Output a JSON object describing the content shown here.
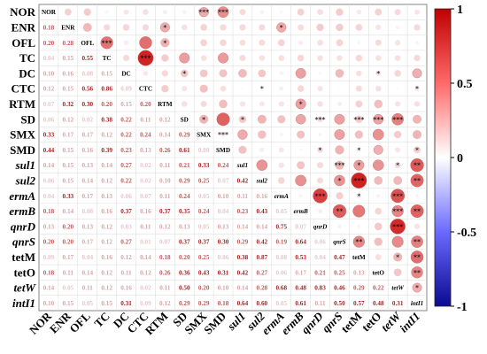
{
  "chart_data": {
    "type": "heatmap",
    "variables": [
      "NOR",
      "ENR",
      "OFL",
      "TC",
      "DC",
      "CTC",
      "RTM",
      "SD",
      "SMX",
      "SMD",
      "sul1",
      "sul2",
      "ermA",
      "ermB",
      "qnrD",
      "qnrS",
      "tetM",
      "tetO",
      "tetW",
      "intI1"
    ],
    "italic_variables": [
      "sul1",
      "sul2",
      "ermA",
      "ermB",
      "qnrD",
      "qnrS",
      "tetW",
      "intI1"
    ],
    "lower_triangle_values": [
      [],
      [
        0.18
      ],
      [
        0.2,
        0.28
      ],
      [
        0.04,
        0.15,
        0.55
      ],
      [
        0.1,
        0.16,
        0.08,
        0.15
      ],
      [
        0.12,
        0.15,
        0.56,
        0.86,
        0.09
      ],
      [
        0.07,
        0.32,
        0.3,
        0.2,
        0.15,
        0.2
      ],
      [
        0.06,
        0.12,
        0.02,
        0.38,
        0.22,
        0.11,
        0.12
      ],
      [
        0.33,
        0.17,
        0.17,
        0.12,
        0.22,
        0.24,
        0.14,
        0.29
      ],
      [
        0.44,
        0.15,
        0.16,
        0.39,
        0.23,
        0.13,
        0.26,
        0.61,
        0.08
      ],
      [
        0.14,
        0.15,
        0.13,
        0.14,
        0.27,
        0.02,
        0.11,
        0.21,
        0.33,
        0.24
      ],
      [
        0.06,
        0.15,
        0.14,
        0.12,
        0.22,
        0.02,
        0.1,
        0.29,
        0.25,
        0.07,
        0.42
      ],
      [
        0.04,
        0.33,
        0.17,
        0.13,
        0.06,
        0.07,
        0.11,
        0.24,
        0.05,
        0.1,
        0.11,
        0.16
      ],
      [
        0.18,
        0.14,
        0.08,
        0.16,
        0.37,
        0.16,
        0.37,
        0.35,
        0.24,
        0.04,
        0.23,
        0.43,
        0.05
      ],
      [
        0.13,
        0.2,
        0.13,
        0.12,
        0.03,
        0.11,
        0.12,
        0.13,
        0.05,
        0.13,
        0.14,
        0.14,
        0.75,
        0.07
      ],
      [
        0.2,
        0.2,
        0.17,
        0.12,
        0.27,
        0.01,
        0.07,
        0.37,
        0.37,
        0.3,
        0.29,
        0.42,
        0.19,
        0.64,
        0.06
      ],
      [
        0.09,
        0.17,
        0.04,
        0.16,
        0.12,
        0.14,
        0.18,
        0.2,
        0.25,
        0.06,
        0.38,
        0.87,
        0.08,
        0.53,
        0.04,
        0.47
      ],
      [
        0.18,
        0.11,
        0.14,
        0.12,
        0.11,
        0.12,
        0.26,
        0.36,
        0.43,
        0.31,
        0.42,
        0.27,
        0.06,
        0.17,
        0.21,
        0.25,
        0.13
      ],
      [
        0.14,
        0.05,
        0.11,
        0.12,
        0.16,
        0.02,
        0.11,
        0.5,
        0.2,
        0.1,
        0.14,
        0.28,
        0.68,
        0.48,
        0.83,
        0.46,
        0.29,
        0.22
      ],
      [
        0.1,
        0.15,
        0.05,
        0.15,
        0.31,
        0.09,
        0.12,
        0.29,
        0.29,
        0.18,
        0.64,
        0.6,
        0.05,
        0.61,
        0.11,
        0.5,
        0.57,
        0.48,
        0.31
      ]
    ],
    "upper_stars": [
      [
        8,
        0,
        "***"
      ],
      [
        9,
        0,
        "***"
      ],
      [
        6,
        1,
        "*"
      ],
      [
        12,
        1,
        "*"
      ],
      [
        3,
        2,
        "***"
      ],
      [
        6,
        2,
        "*"
      ],
      [
        5,
        3,
        "***"
      ],
      [
        7,
        4,
        "*"
      ],
      [
        17,
        4,
        "*"
      ],
      [
        11,
        5,
        "*"
      ],
      [
        19,
        5,
        "*"
      ],
      [
        13,
        6,
        "*"
      ],
      [
        8,
        7,
        "*"
      ],
      [
        10,
        7,
        "*"
      ],
      [
        14,
        7,
        "***"
      ],
      [
        16,
        7,
        "***"
      ],
      [
        17,
        7,
        "***"
      ],
      [
        18,
        7,
        "***"
      ],
      [
        9,
        8,
        "***"
      ],
      [
        14,
        9,
        "*"
      ],
      [
        16,
        9,
        "*"
      ],
      [
        19,
        9,
        "*"
      ],
      [
        15,
        10,
        "***"
      ],
      [
        16,
        10,
        "*"
      ],
      [
        18,
        10,
        "*"
      ],
      [
        19,
        10,
        "**"
      ],
      [
        15,
        11,
        "*"
      ],
      [
        16,
        11,
        "***"
      ],
      [
        19,
        11,
        "**"
      ],
      [
        14,
        12,
        "***"
      ],
      [
        16,
        12,
        "*"
      ],
      [
        18,
        12,
        "***"
      ],
      [
        15,
        13,
        "**"
      ],
      [
        18,
        13,
        "***"
      ],
      [
        19,
        13,
        "**"
      ],
      [
        18,
        14,
        "***"
      ],
      [
        16,
        15,
        "**"
      ],
      [
        19,
        15,
        "**"
      ],
      [
        18,
        16,
        "*"
      ],
      [
        19,
        16,
        "**"
      ],
      [
        19,
        17,
        "**"
      ],
      [
        19,
        18,
        "*"
      ]
    ],
    "colorbar": {
      "min": -1,
      "max": 1,
      "ticks": [
        1,
        0.5,
        0,
        -0.5,
        -1
      ],
      "labels": [
        "1",
        "0.5",
        "0",
        "-0.5",
        "-1"
      ]
    },
    "colors": {
      "positive": "#e01010",
      "negative": "#1a1aa6",
      "neutral": "#ffffff"
    }
  }
}
